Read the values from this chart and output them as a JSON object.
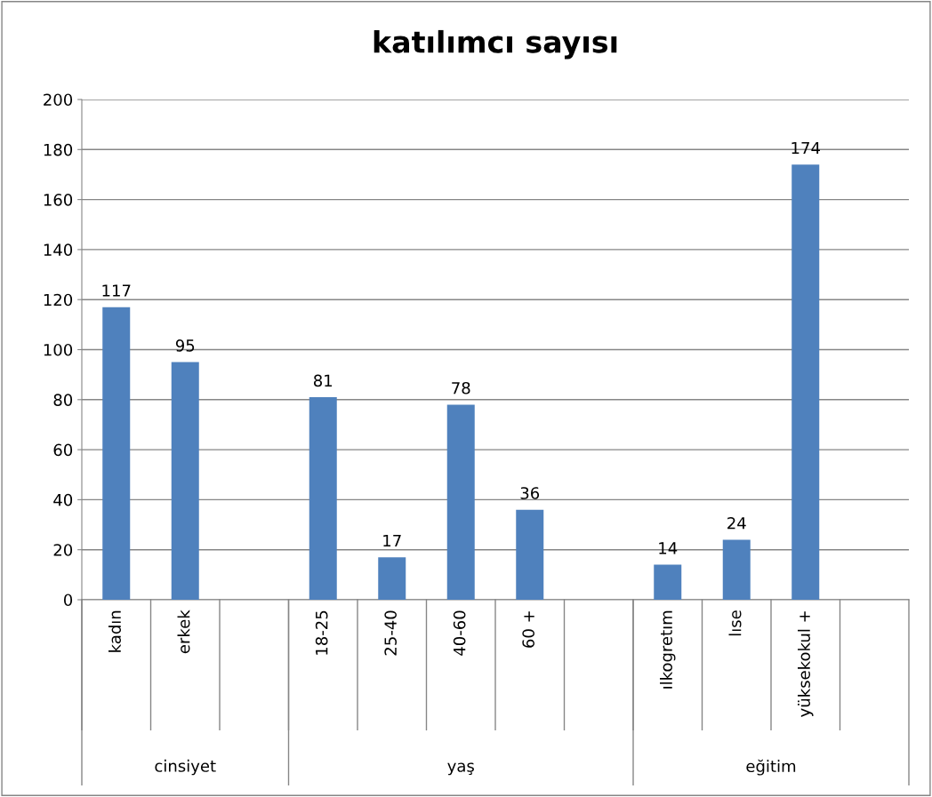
{
  "chart_data": {
    "type": "bar",
    "title": "katılımcı sayısı",
    "categories": [
      "kadın",
      "erkek",
      null,
      "18-25",
      "25-40",
      "40-60",
      "60 +",
      null,
      "ılkogretım",
      "lıse",
      "yüksekokul +",
      null
    ],
    "values": [
      117,
      95,
      null,
      81,
      17,
      78,
      36,
      null,
      14,
      24,
      174,
      null
    ],
    "color": "#4f81bd",
    "ylim": [
      0,
      200
    ],
    "yticks": [
      0,
      20,
      40,
      60,
      80,
      100,
      120,
      140,
      160,
      180,
      200
    ],
    "grid": "y",
    "data_labels": true,
    "annotations": [
      "cinsiyet",
      "yaş",
      "eğitim"
    ]
  }
}
